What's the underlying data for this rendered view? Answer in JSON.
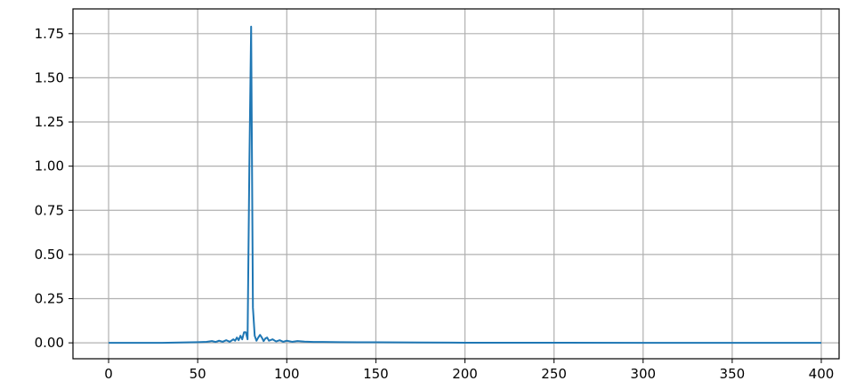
{
  "chart_data": {
    "type": "line",
    "title": "",
    "xlabel": "",
    "ylabel": "",
    "xlim": [
      -20,
      410
    ],
    "ylim": [
      -0.09,
      1.89
    ],
    "grid": true,
    "xticks": [
      0,
      50,
      100,
      150,
      200,
      250,
      300,
      350,
      400
    ],
    "xtick_labels": [
      "0",
      "50",
      "100",
      "150",
      "200",
      "250",
      "300",
      "350",
      "400"
    ],
    "yticks": [
      0.0,
      0.25,
      0.5,
      0.75,
      1.0,
      1.25,
      1.5,
      1.75
    ],
    "ytick_labels": [
      "0.00",
      "0.25",
      "0.50",
      "0.75",
      "1.00",
      "1.25",
      "1.50",
      "1.75"
    ],
    "series": [
      {
        "color": "#1f77b4",
        "x": [
          0,
          10,
          20,
          30,
          40,
          50,
          55,
          58,
          60,
          62,
          64,
          66,
          68,
          70,
          71,
          72,
          73,
          74,
          75,
          76,
          77,
          78,
          79,
          80,
          81,
          82,
          83,
          84,
          85,
          86,
          87,
          88,
          89,
          90,
          92,
          94,
          96,
          98,
          100,
          103,
          106,
          110,
          115,
          120,
          130,
          140,
          150,
          175,
          200,
          250,
          300,
          350,
          400
        ],
        "y": [
          0.0,
          0.0,
          0.0,
          0.0,
          0.002,
          0.004,
          0.006,
          0.01,
          0.005,
          0.012,
          0.006,
          0.015,
          0.006,
          0.02,
          0.012,
          0.03,
          0.015,
          0.04,
          0.02,
          0.06,
          0.06,
          0.02,
          1.0,
          1.79,
          0.2,
          0.04,
          0.012,
          0.03,
          0.045,
          0.03,
          0.01,
          0.025,
          0.03,
          0.012,
          0.02,
          0.008,
          0.015,
          0.006,
          0.012,
          0.006,
          0.01,
          0.007,
          0.005,
          0.005,
          0.004,
          0.003,
          0.003,
          0.002,
          0.001,
          0.001,
          0.0,
          0.0,
          0.0
        ]
      }
    ]
  }
}
